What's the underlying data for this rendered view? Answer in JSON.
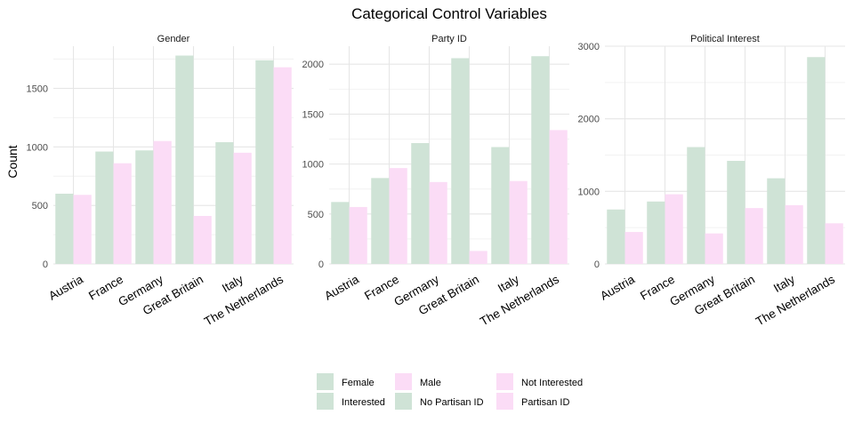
{
  "title": "Categorical Control Variables",
  "ylabel": "Count",
  "colors": {
    "green": "#cfe3d6",
    "pink": "#fbdcf6"
  },
  "legend": [
    {
      "label": "Female",
      "color": "#cfe3d6"
    },
    {
      "label": "Interested",
      "color": "#cfe3d6"
    },
    {
      "label": "Male",
      "color": "#fbdcf6"
    },
    {
      "label": "No Partisan ID",
      "color": "#cfe3d6"
    },
    {
      "label": "Not Interested",
      "color": "#fbdcf6"
    },
    {
      "label": "Partisan ID",
      "color": "#fbdcf6"
    }
  ],
  "chart_data": [
    {
      "type": "bar",
      "panel": "Gender",
      "categories": [
        "Austria",
        "France",
        "Germany",
        "Great Britain",
        "Italy",
        "The Netherlands"
      ],
      "series": [
        {
          "name": "Female",
          "values": [
            600,
            960,
            970,
            1780,
            1040,
            1740
          ]
        },
        {
          "name": "Male",
          "values": [
            590,
            860,
            1050,
            410,
            950,
            1680
          ]
        }
      ],
      "ylim": [
        0,
        1860
      ],
      "yticks": [
        0,
        500,
        1000,
        1500
      ],
      "xlabel": "",
      "ylabel": "Count",
      "grid": true
    },
    {
      "type": "bar",
      "panel": "Party ID",
      "categories": [
        "Austria",
        "France",
        "Germany",
        "Great Britain",
        "Italy",
        "The Netherlands"
      ],
      "series": [
        {
          "name": "No Partisan ID",
          "values": [
            620,
            860,
            1210,
            2060,
            1170,
            2080
          ]
        },
        {
          "name": "Partisan ID",
          "values": [
            570,
            960,
            820,
            130,
            830,
            1340
          ]
        }
      ],
      "ylim": [
        0,
        2180
      ],
      "yticks": [
        0,
        500,
        1000,
        1500,
        2000
      ],
      "xlabel": "",
      "ylabel": "",
      "grid": true
    },
    {
      "type": "bar",
      "panel": "Political Interest",
      "categories": [
        "Austria",
        "France",
        "Germany",
        "Great Britain",
        "Italy",
        "The Netherlands"
      ],
      "series": [
        {
          "name": "Interested",
          "values": [
            750,
            860,
            1610,
            1420,
            1180,
            2850
          ]
        },
        {
          "name": "Not Interested",
          "values": [
            440,
            960,
            420,
            770,
            810,
            560
          ]
        }
      ],
      "ylim": [
        0,
        3000
      ],
      "yticks": [
        0,
        1000,
        2000,
        3000
      ],
      "xlabel": "",
      "ylabel": "",
      "grid": true
    }
  ]
}
